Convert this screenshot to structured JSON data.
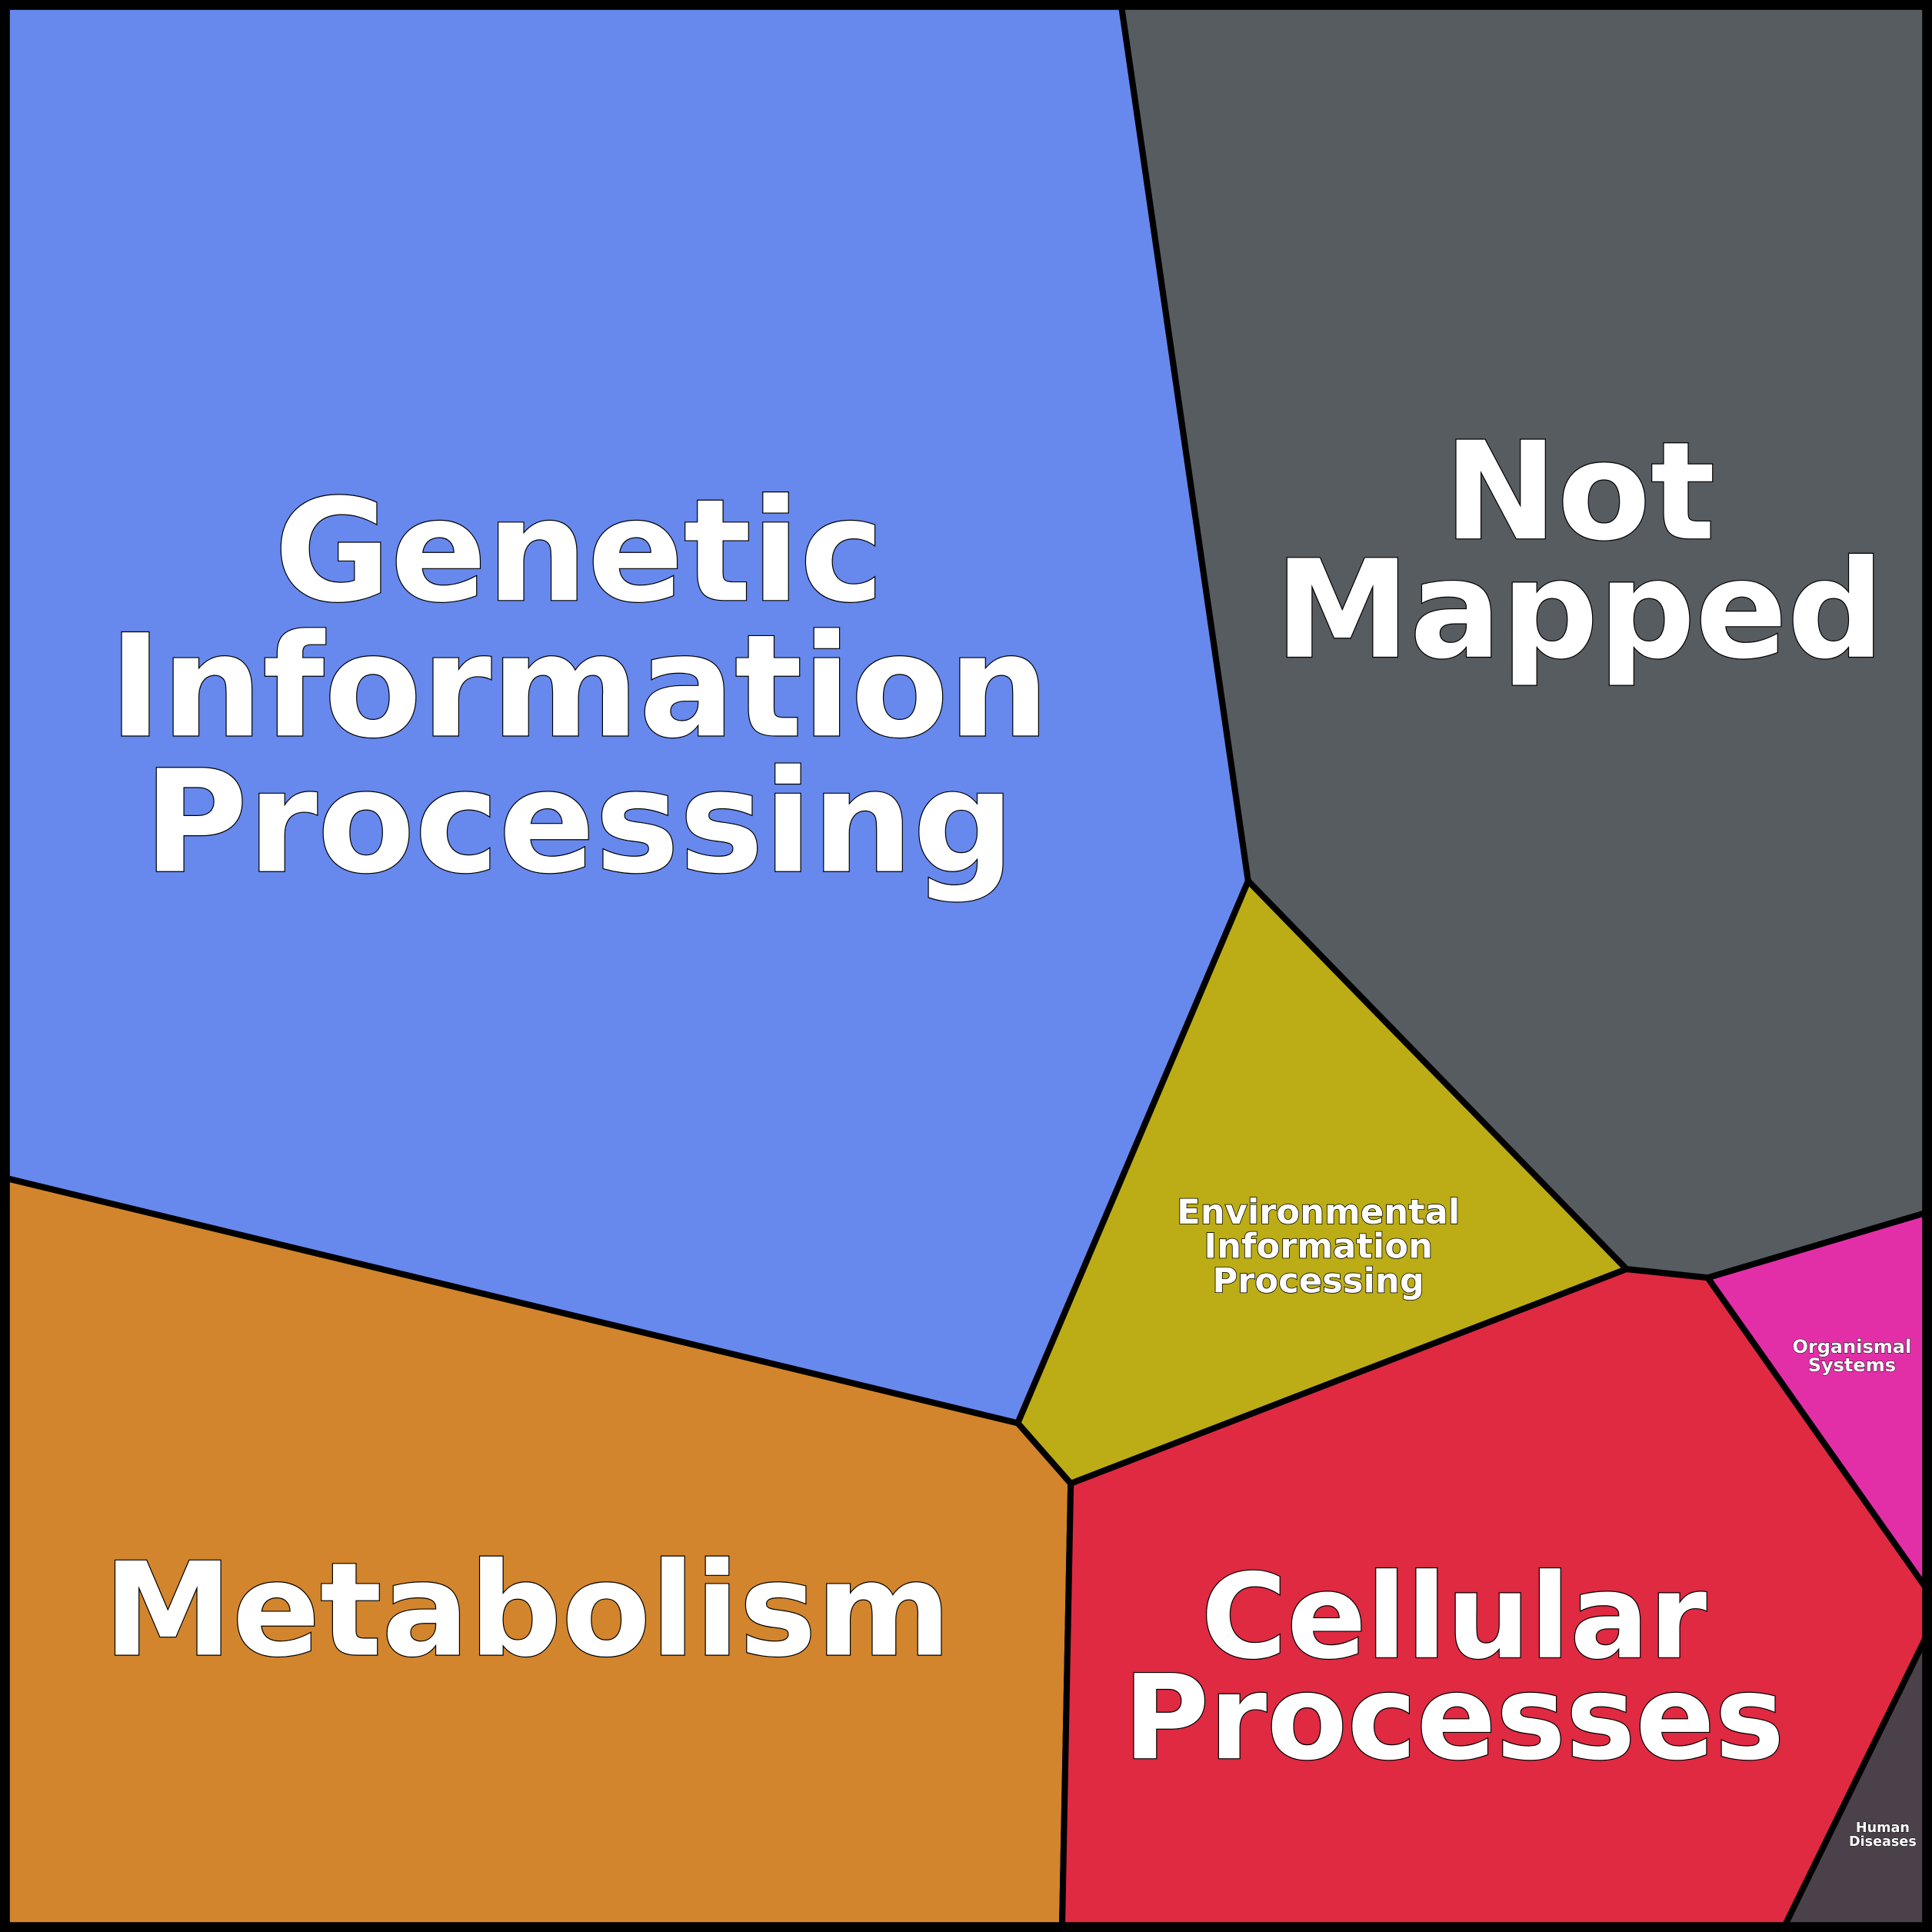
{
  "nodes": [
    {
      "label": [
        "Genetic",
        "Information",
        "Processing"
      ],
      "color": "#6789ed"
    },
    {
      "label": [
        "Not",
        "Mapped"
      ],
      "color": "#575c60"
    },
    {
      "label": [
        "Environmental",
        "Information",
        "Processing"
      ],
      "color": "#bcac16"
    },
    {
      "label": [
        "Metabolism"
      ],
      "color": "#d2852d"
    },
    {
      "label": [
        "Cellular",
        "Processes"
      ],
      "color": "#df2a42"
    },
    {
      "label": [
        "Organismal",
        "Systems"
      ],
      "color": "#e22fa8"
    },
    {
      "label": [
        "Human",
        "Diseases"
      ],
      "color": "#4a414a"
    }
  ]
}
